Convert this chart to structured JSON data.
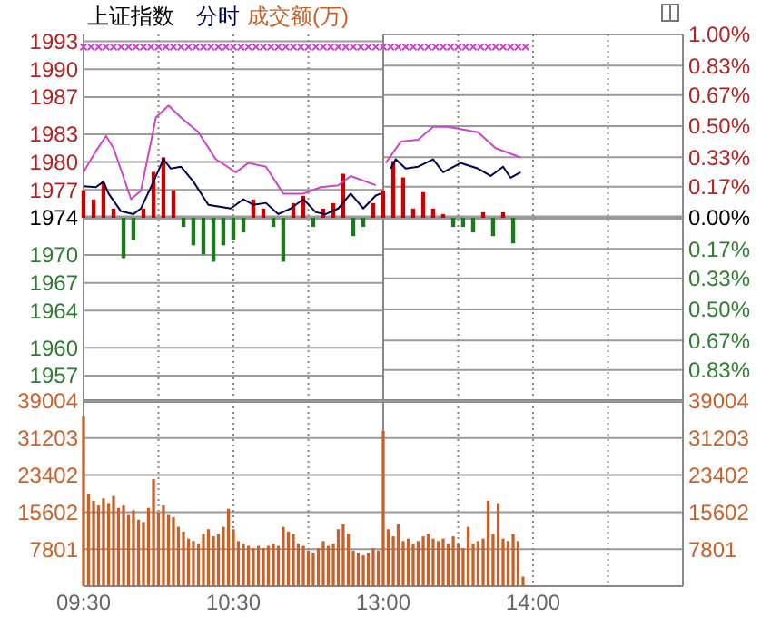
{
  "chart_data": [
    {
      "type": "line",
      "title": "上证指数",
      "xlim": [
        9.5,
        11.5
      ],
      "xticks": [
        9.5,
        10,
        10.5,
        11,
        11.5
      ],
      "ylim": [
        1954.26,
        1993.74
      ],
      "yticks": [
        1993,
        1990,
        1987,
        1983,
        1980,
        1977,
        1974,
        1970,
        1967,
        1964,
        1960,
        1957
      ],
      "y2lim": [
        -1,
        1
      ],
      "tick_labels": "y",
      "grid": true,
      "legend": false,
      "ref_lines": [
        {
          "axis": "y",
          "value": 1974,
          "color": "#999999"
        }
      ],
      "series": [
        {
          "type": "bar",
          "axis": "y2",
          "x": [
            9.5,
            9.567,
            9.633,
            9.7,
            9.767,
            9.833,
            9.9,
            9.967,
            10.033,
            10.1,
            10.167,
            10.233,
            10.3,
            10.367,
            10.433,
            10.5,
            10.567,
            10.633,
            10.7,
            10.767,
            10.833,
            10.9,
            10.967,
            11.033,
            11.1,
            11.167,
            11.233,
            11.3,
            11.367,
            11.433
          ],
          "values": [
            0.15,
            0.1,
            0.19,
            0.05,
            -0.22,
            -0.12,
            0.05,
            0.25,
            0.33,
            0.15,
            -0.05,
            -0.15,
            -0.2,
            -0.24,
            -0.15,
            -0.12,
            -0.08,
            0.1,
            0.05,
            -0.05,
            -0.24,
            0.08,
            0.12,
            -0.05,
            0.05,
            0.08,
            0.24,
            -0.1,
            -0.05,
            0.08
          ],
          "colors": [
            "#cc0000",
            "#cc0000",
            "#cc0000",
            "#cc0000",
            "#1a7a1a",
            "#1a7a1a",
            "#cc0000",
            "#cc0000",
            "#cc0000",
            "#cc0000",
            "#1a7a1a",
            "#1a7a1a",
            "#1a7a1a",
            "#1a7a1a",
            "#1a7a1a",
            "#1a7a1a",
            "#1a7a1a",
            "#cc0000",
            "#cc0000",
            "#1a7a1a",
            "#1a7a1a",
            "#cc0000",
            "#cc0000",
            "#1a7a1a",
            "#cc0000",
            "#cc0000",
            "#cc0000",
            "#1a7a1a",
            "#1a7a1a",
            "#cc0000"
          ]
        },
        {
          "color": "#cc44cc",
          "x": [
            9.5,
            9.583,
            9.65,
            9.7,
            9.817,
            9.883,
            9.983,
            10.067,
            10.15,
            10.267,
            10.383,
            10.517,
            10.6,
            10.717,
            10.833,
            10.967,
            11.083,
            11.2,
            11.283,
            11.45
          ],
          "values": [
            1978.9,
            1981.2,
            1982.8,
            1981.5,
            1976.0,
            1976.9,
            1984.8,
            1986.1,
            1984.8,
            1983.2,
            1980.3,
            1978.9,
            1979.9,
            1979.5,
            1976.6,
            1976.6,
            1977.3,
            1977.5,
            1978.5,
            1977.5
          ]
        },
        {
          "name": "分时",
          "color": "#000050",
          "x": [
            9.5,
            9.583,
            9.633,
            9.667,
            9.75,
            9.833,
            9.883,
            9.967,
            10.033,
            10.083,
            10.15,
            10.233,
            10.333,
            10.483,
            10.567,
            10.633,
            10.717,
            10.8,
            10.883,
            10.967,
            11.05,
            11.117,
            11.2,
            11.283,
            11.367,
            11.45,
            11.483
          ],
          "values": [
            1977.4,
            1977.3,
            1977.9,
            1976.6,
            1974.7,
            1974.4,
            1975.0,
            1977.9,
            1980.3,
            1979.3,
            1979.5,
            1977.9,
            1975.4,
            1975.0,
            1976.0,
            1975.4,
            1975.6,
            1974.4,
            1975.0,
            1976.0,
            1974.6,
            1974.4,
            1975.0,
            1976.6,
            1975.0,
            1976.4,
            1976.6
          ]
        },
        {
          "type": "scatter",
          "marker": "cross",
          "color": "#cc44cc",
          "x": [
            9.5,
            9.55,
            9.6,
            9.65,
            9.7,
            9.75,
            9.8,
            9.85,
            9.9,
            9.95,
            10,
            10.05,
            10.1,
            10.15,
            10.2,
            10.25,
            10.3,
            10.35,
            10.4,
            10.45,
            10.5,
            10.55,
            10.6,
            10.65,
            10.7,
            10.75,
            10.8,
            10.85,
            10.9,
            10.95,
            11,
            11.05,
            11.1,
            11.15,
            11.2,
            11.25,
            11.3,
            11.35,
            11.4,
            11.45
          ],
          "values": [
            1992.4,
            1992.4,
            1992.4,
            1992.4,
            1992.4,
            1992.4,
            1992.4,
            1992.4,
            1992.4,
            1992.4,
            1992.4,
            1992.4,
            1992.4,
            1992.4,
            1992.4,
            1992.4,
            1992.4,
            1992.4,
            1992.4,
            1992.4,
            1992.4,
            1992.4,
            1992.4,
            1992.4,
            1992.4,
            1992.4,
            1992.4,
            1992.4,
            1992.4,
            1992.4,
            1992.4,
            1992.4,
            1992.4,
            1992.4,
            1992.4,
            1992.4,
            1992.4,
            1992.4,
            1992.4,
            1992.4
          ]
        }
      ]
    },
    {
      "type": "line",
      "xlim": [
        13,
        15
      ],
      "xticks": [
        13,
        13.5,
        14,
        14.5,
        15
      ],
      "ylim": [
        1954.26,
        1993.74
      ],
      "y2lim": [
        -1,
        1
      ],
      "y2ticks": [
        {
          "value": 1,
          "label": "1.00%"
        },
        {
          "value": 0.83,
          "label": "0.83%"
        },
        {
          "value": 0.67,
          "label": "0.67%"
        },
        {
          "value": 0.5,
          "label": "0.50%"
        },
        {
          "value": 0.33,
          "label": "0.33%"
        },
        {
          "value": 0.17,
          "label": "0.17%"
        },
        {
          "value": 0,
          "label": "0.00%"
        },
        {
          "value": -0.17,
          "label": "0.17%"
        },
        {
          "value": -0.33,
          "label": "0.33%"
        },
        {
          "value": -0.5,
          "label": "0.50%"
        },
        {
          "value": -0.67,
          "label": "0.67%"
        },
        {
          "value": -0.83,
          "label": "0.83%"
        }
      ],
      "tick_labels": "y",
      "grid": true,
      "legend": false,
      "ref_lines": [
        {
          "axis": "y",
          "value": 1974,
          "color": "#999999"
        }
      ],
      "series": [
        {
          "type": "bar",
          "axis": "y2",
          "x": [
            13,
            13.067,
            13.133,
            13.2,
            13.267,
            13.333,
            13.4,
            13.467,
            13.533,
            13.6,
            13.667,
            13.733,
            13.8,
            13.867
          ],
          "values": [
            0.15,
            0.31,
            0.22,
            0.05,
            0.14,
            0.05,
            0.02,
            -0.05,
            -0.05,
            -0.08,
            0.03,
            -0.1,
            0.03,
            -0.14
          ],
          "colors": [
            "#cc0000",
            "#cc0000",
            "#cc0000",
            "#cc0000",
            "#cc0000",
            "#cc0000",
            "#cc0000",
            "#1a7a1a",
            "#1a7a1a",
            "#1a7a1a",
            "#cc0000",
            "#1a7a1a",
            "#cc0000",
            "#1a7a1a"
          ]
        },
        {
          "color": "#cc44cc",
          "x": [
            13.017,
            13.117,
            13.233,
            13.333,
            13.433,
            13.633,
            13.75,
            13.917
          ],
          "values": [
            1979.9,
            1982.2,
            1982.4,
            1983.8,
            1983.8,
            1983.2,
            1981.5,
            1980.5
          ]
        },
        {
          "color": "#000050",
          "x": [
            13.05,
            13.083,
            13.15,
            13.233,
            13.333,
            13.4,
            13.517,
            13.633,
            13.717,
            13.8,
            13.85,
            13.917
          ],
          "values": [
            1979.3,
            1980.3,
            1979.3,
            1979.5,
            1980.3,
            1978.9,
            1979.9,
            1979.3,
            1978.5,
            1979.5,
            1978.3,
            1978.9
          ]
        },
        {
          "type": "scatter",
          "marker": "cross",
          "color": "#cc44cc",
          "x": [
            13,
            13.05,
            13.1,
            13.15,
            13.2,
            13.25,
            13.3,
            13.35,
            13.4,
            13.45,
            13.5,
            13.55,
            13.6,
            13.65,
            13.7,
            13.75,
            13.8,
            13.85,
            13.9,
            13.95
          ],
          "values": [
            1992.4,
            1992.4,
            1992.4,
            1992.4,
            1992.4,
            1992.4,
            1992.4,
            1992.4,
            1992.4,
            1992.4,
            1992.4,
            1992.4,
            1992.4,
            1992.4,
            1992.4,
            1992.4,
            1992.4,
            1992.4,
            1992.4,
            1992.4
          ]
        }
      ]
    },
    {
      "type": "bar",
      "xlim": [
        9.5,
        11.5
      ],
      "xticks": [
        {
          "value": 9.5,
          "label": "09:30"
        },
        {
          "value": 10,
          "label": null
        },
        {
          "value": 10.5,
          "label": "10:30"
        },
        {
          "value": 11,
          "label": null
        }
      ],
      "ylim": [
        0,
        39004
      ],
      "yticks": [
        7801,
        15602,
        23402,
        31203,
        39004
      ],
      "grid": true,
      "legend": false,
      "series": [
        {
          "name": "成交额(万)",
          "color": "#c8602a",
          "x": [
            9.5,
            9.533,
            9.567,
            9.6,
            9.633,
            9.667,
            9.7,
            9.733,
            9.767,
            9.8,
            9.833,
            9.867,
            9.9,
            9.933,
            9.967,
            10,
            10.033,
            10.067,
            10.1,
            10.133,
            10.167,
            10.2,
            10.233,
            10.267,
            10.3,
            10.333,
            10.367,
            10.4,
            10.433,
            10.467,
            10.5,
            10.533,
            10.567,
            10.6,
            10.633,
            10.667,
            10.7,
            10.733,
            10.767,
            10.8,
            10.833,
            10.867,
            10.9,
            10.933,
            10.967,
            11,
            11.033,
            11.067,
            11.1,
            11.133,
            11.167,
            11.2,
            11.233,
            11.267,
            11.3,
            11.333,
            11.367,
            11.4,
            11.433,
            11.467
          ],
          "values": [
            35800,
            19500,
            18000,
            17000,
            18500,
            17500,
            19000,
            16500,
            17000,
            15000,
            16000,
            14000,
            13500,
            16500,
            22600,
            15500,
            17000,
            15000,
            14500,
            12500,
            11500,
            10000,
            9500,
            9000,
            11000,
            12000,
            10500,
            11000,
            12500,
            16300,
            12000,
            9500,
            9000,
            8500,
            8000,
            8500,
            8000,
            8500,
            9000,
            8500,
            12500,
            11500,
            11000,
            9000,
            8500,
            7500,
            7000,
            8000,
            9500,
            8500,
            9000,
            12000,
            13000,
            11000,
            7500,
            7000,
            6500,
            7000,
            8000,
            7500
          ]
        }
      ]
    },
    {
      "type": "bar",
      "xlim": [
        13,
        15
      ],
      "xticks": [
        {
          "value": 13,
          "label": "13:00"
        },
        {
          "value": 13.5,
          "label": null
        },
        {
          "value": 14,
          "label": "14:00"
        },
        {
          "value": 14.5,
          "label": null
        },
        {
          "value": 15,
          "label": null
        }
      ],
      "y2lim": [
        0,
        39004
      ],
      "y2ticks": [
        7801,
        15602,
        23402,
        31203,
        39004
      ],
      "grid": true,
      "legend": false,
      "series": [
        {
          "axis": "y2",
          "color": "#c8602a",
          "x": [
            13,
            13.033,
            13.067,
            13.1,
            13.133,
            13.167,
            13.2,
            13.233,
            13.267,
            13.3,
            13.333,
            13.367,
            13.4,
            13.433,
            13.467,
            13.5,
            13.533,
            13.567,
            13.6,
            13.633,
            13.667,
            13.7,
            13.733,
            13.767,
            13.8,
            13.833,
            13.867,
            13.9,
            13.933
          ],
          "values": [
            32700,
            12000,
            10500,
            13000,
            9500,
            10000,
            9000,
            9500,
            10500,
            11000,
            10000,
            9500,
            10000,
            9000,
            10500,
            9000,
            8000,
            12500,
            9000,
            9500,
            10000,
            18000,
            11000,
            17500,
            10000,
            9500,
            11000,
            9500,
            2000
          ]
        }
      ]
    }
  ]
}
